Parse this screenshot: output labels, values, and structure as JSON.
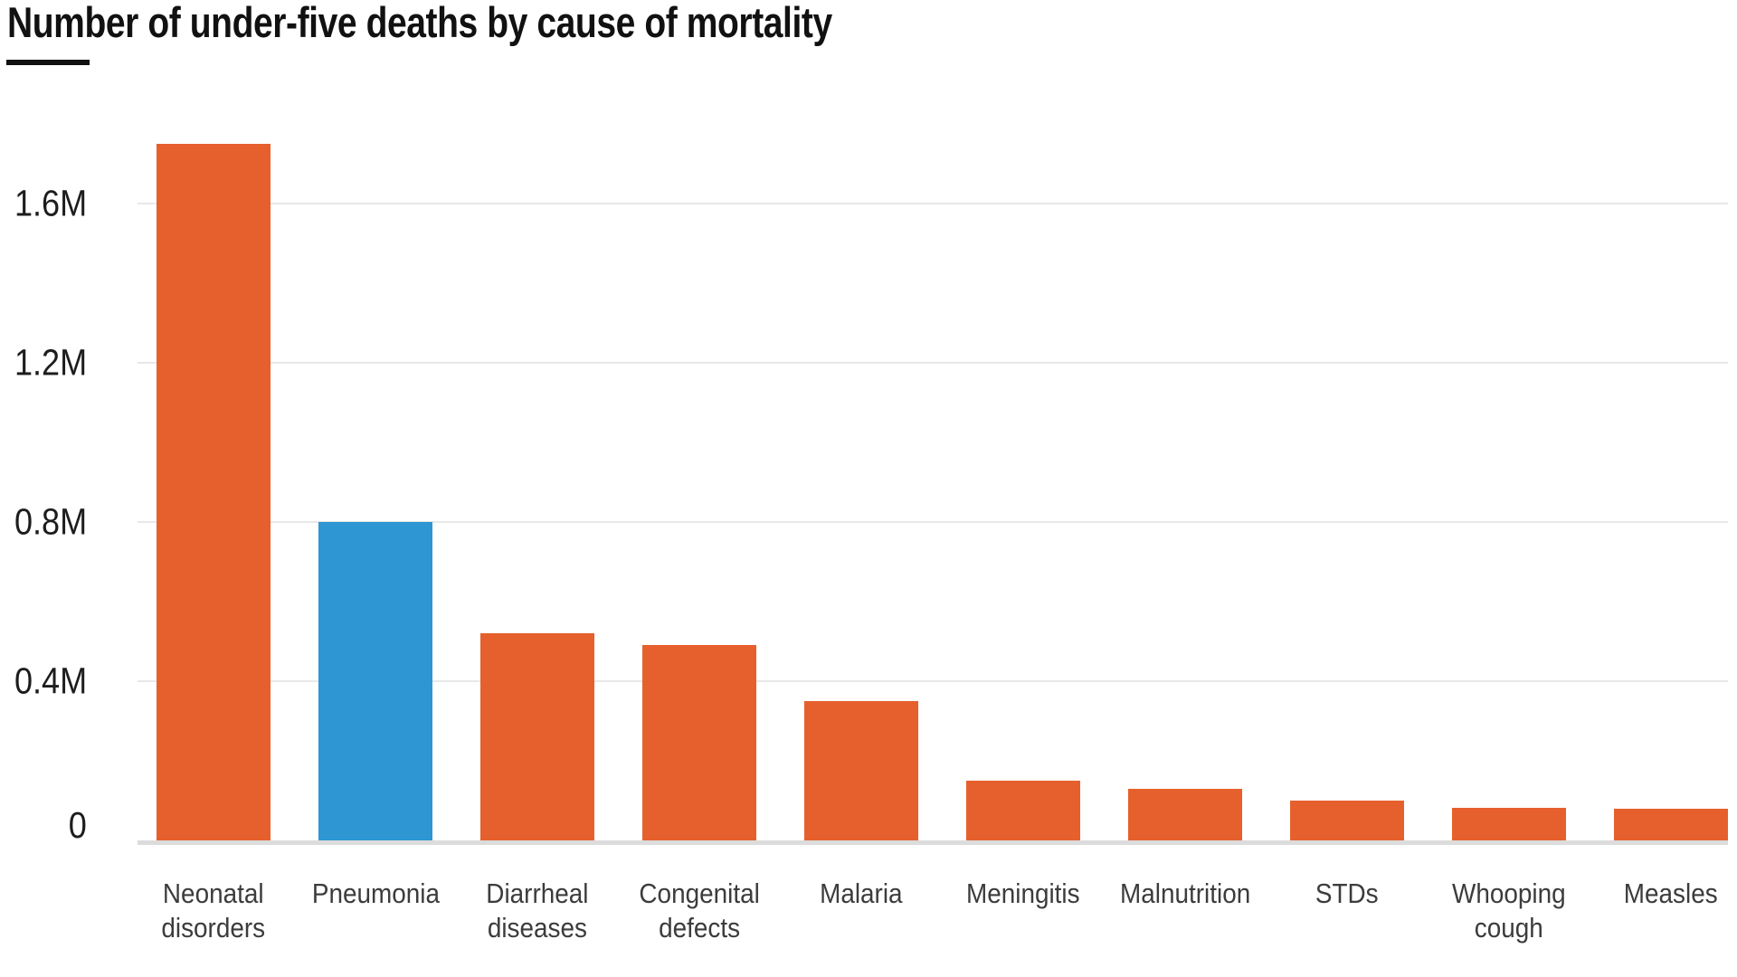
{
  "header": {
    "title": "Number of under-five deaths by cause of mortality"
  },
  "chart_data": {
    "type": "bar",
    "title": "Number of under-five deaths by cause of mortality",
    "unit": "millions of deaths (M)",
    "categories": [
      "Neonatal disorders",
      "Pneumonia",
      "Diarrheal diseases",
      "Congenital defects",
      "Malaria",
      "Meningitis",
      "Malnutrition",
      "STDs",
      "Whooping cough",
      "Measles"
    ],
    "categories_display": [
      "Neonatal\ndisorders",
      "Pneumonia",
      "Diarrheal\ndiseases",
      "Congenital\ndefects",
      "Malaria",
      "Meningitis",
      "Malnutrition",
      "STDs",
      "Whooping\ncough",
      "Measles"
    ],
    "values": [
      1.75,
      0.8,
      0.52,
      0.49,
      0.35,
      0.15,
      0.13,
      0.1,
      0.081,
      0.079
    ],
    "highlight_category": "Pneumonia",
    "y_ticks": [
      {
        "value": 0,
        "label": "0"
      },
      {
        "value": 0.4,
        "label": "0.4M"
      },
      {
        "value": 0.8,
        "label": "0.8M"
      },
      {
        "value": 1.2,
        "label": "1.2M"
      },
      {
        "value": 1.6,
        "label": "1.6M"
      }
    ],
    "ylim": [
      0,
      1.86
    ],
    "xlabel": "",
    "ylabel": "",
    "grid": true,
    "legend": "none",
    "colors": {
      "bar_default": "#E6602D",
      "bar_highlight": "#2E96D2",
      "gridline": "#E8E8E8",
      "axis_line": "#DCDCDC",
      "title_text": "#111111",
      "title_rule": "#111111",
      "tick_text": "#1D1D1D",
      "label_text": "#3C3C3C"
    }
  }
}
